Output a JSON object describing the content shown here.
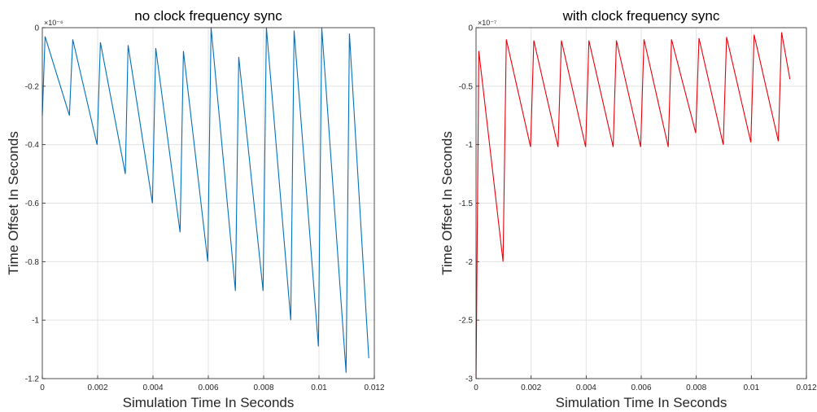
{
  "chart_data": [
    {
      "type": "line",
      "title": "no clock frequency sync",
      "xlabel": "Simulation Time In Seconds",
      "ylabel": "Time Offset In Seconds",
      "y_exponent_label": "×10⁻⁶",
      "xlim": [
        0,
        0.012
      ],
      "ylim": [
        -1.2,
        0
      ],
      "y_scale_factor": 1e-06,
      "grid": true,
      "line_color": "#0072BD",
      "x_ticks": [
        0,
        0.002,
        0.004,
        0.006,
        0.008,
        0.01,
        0.012
      ],
      "x_tick_labels": [
        "0",
        "0.002",
        "0.004",
        "0.006",
        "0.008",
        "0.01",
        "0.012"
      ],
      "y_ticks": [
        0,
        -0.2,
        -0.4,
        -0.6,
        -0.8,
        -1,
        -1.2
      ],
      "y_tick_labels": [
        "0",
        "-0.2",
        "-0.4",
        "-0.6",
        "-0.8",
        "-1",
        "-1.2"
      ],
      "x": [
        0,
        0.0001,
        0.00098,
        0.0011,
        0.00198,
        0.0021,
        0.003,
        0.0031,
        0.00398,
        0.0041,
        0.00498,
        0.0051,
        0.00598,
        0.0061,
        0.00698,
        0.0071,
        0.00798,
        0.0081,
        0.00898,
        0.0091,
        0.00998,
        0.0101,
        0.01098,
        0.0111,
        0.0118
      ],
      "y": [
        -0.3,
        -0.03,
        -0.3,
        -0.04,
        -0.4,
        -0.05,
        -0.5,
        -0.06,
        -0.6,
        -0.07,
        -0.7,
        -0.08,
        -0.8,
        0.0,
        -0.9,
        -0.1,
        -0.9,
        0.0,
        -1.0,
        -0.01,
        -1.09,
        0.0,
        -1.18,
        -0.02,
        -1.13
      ]
    },
    {
      "type": "line",
      "title": "with clock frequency sync",
      "xlabel": "Simulation Time In Seconds",
      "ylabel": "Time Offset In Seconds",
      "y_exponent_label": "×10⁻⁷",
      "xlim": [
        0,
        0.012
      ],
      "ylim": [
        -3,
        0
      ],
      "y_scale_factor": 1e-07,
      "grid": true,
      "line_color": "#E8000B",
      "x_ticks": [
        0,
        0.002,
        0.004,
        0.006,
        0.008,
        0.01,
        0.012
      ],
      "x_tick_labels": [
        "0",
        "0.002",
        "0.004",
        "0.006",
        "0.008",
        "0.01",
        "0.012"
      ],
      "y_ticks": [
        0,
        -0.5,
        -1,
        -1.5,
        -2,
        -2.5,
        -3
      ],
      "y_tick_labels": [
        "0",
        "-0.5",
        "-1",
        "-1.5",
        "-2",
        "-2.5",
        "-3"
      ],
      "x": [
        0,
        0.0001,
        0.00098,
        0.0011,
        0.00198,
        0.0021,
        0.00298,
        0.0031,
        0.00398,
        0.0041,
        0.00498,
        0.0051,
        0.00598,
        0.0061,
        0.00698,
        0.0071,
        0.00798,
        0.0081,
        0.00898,
        0.0091,
        0.00998,
        0.0101,
        0.01098,
        0.0111,
        0.0114
      ],
      "y": [
        -3.0,
        -0.2,
        -2.0,
        -0.1,
        -1.02,
        -0.11,
        -1.02,
        -0.11,
        -1.02,
        -0.11,
        -1.02,
        -0.11,
        -1.02,
        -0.1,
        -1.02,
        -0.1,
        -0.9,
        -0.09,
        -1.0,
        -0.08,
        -0.98,
        -0.06,
        -0.97,
        -0.04,
        -0.44
      ]
    }
  ]
}
